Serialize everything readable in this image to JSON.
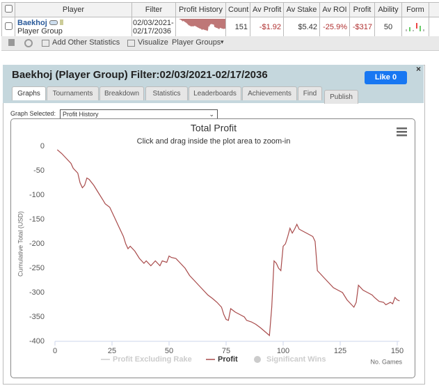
{
  "table": {
    "headers": [
      "Player",
      "Filter",
      "Profit History",
      "Count",
      "Av Profit",
      "Av Stake",
      "Av ROI",
      "Profit",
      "Ability",
      "Form"
    ],
    "row": {
      "player": "Baekhoj",
      "group": "Player Group",
      "filter": [
        "02/03/2021-",
        "02/17/2036"
      ],
      "count": 151,
      "av_profit": "-$1.92",
      "av_stake": "$5.42",
      "av_roi": "-25.9%",
      "profit": "-$317",
      "ability": 50
    }
  },
  "toolbar": [
    "Add Other Statistics",
    "Visualize",
    "Player Groups"
  ],
  "panel": {
    "title": "Baekhoj (Player Group) Filter:02/03/2021-02/17/2036",
    "like": "Like 0",
    "tabs": [
      "Graphs",
      "Tournaments",
      "Breakdown",
      "Statistics",
      "Leaderboards",
      "Achievements",
      "Find",
      "Publish"
    ],
    "graph_selected_label": "Graph Selected:",
    "graph_selected": "Profit History"
  },
  "chart_data": {
    "type": "line",
    "title": "Total Profit",
    "subtitle": "Click and drag inside the plot area to zoom-in",
    "y_label": "Cumulative Total (USD)",
    "x_label": "No. Games",
    "x": [
      1,
      3,
      5,
      7,
      8,
      10,
      11,
      12,
      13,
      14,
      15,
      17,
      19,
      21,
      22,
      24,
      26,
      28,
      30,
      31,
      32,
      33,
      35,
      37,
      39,
      40,
      42,
      44,
      46,
      47,
      49,
      50,
      51,
      53,
      55,
      57,
      59,
      61,
      63,
      65,
      67,
      69,
      71,
      73,
      74,
      75,
      76,
      77,
      79,
      81,
      83,
      84,
      86,
      88,
      90,
      92,
      94,
      95,
      96,
      97,
      98,
      99,
      100,
      101,
      102,
      103,
      104,
      105,
      106,
      107,
      109,
      111,
      113,
      114,
      115,
      116,
      118,
      120,
      122,
      124,
      126,
      128,
      130,
      131,
      132,
      133,
      135,
      137,
      139,
      140,
      142,
      144,
      145,
      147,
      148,
      149,
      150,
      151
    ],
    "series": [
      {
        "name": "Profit",
        "color": "#a84a4a",
        "values": [
          -7,
          -15,
          -25,
          -35,
          -45,
          -55,
          -75,
          -85,
          -80,
          -65,
          -68,
          -80,
          -95,
          -110,
          -118,
          -125,
          -145,
          -165,
          -185,
          -200,
          -210,
          -205,
          -215,
          -230,
          -240,
          -235,
          -245,
          -235,
          -245,
          -235,
          -238,
          -225,
          -228,
          -230,
          -240,
          -250,
          -265,
          -275,
          -285,
          -295,
          -305,
          -312,
          -320,
          -330,
          -345,
          -355,
          -357,
          -333,
          -340,
          -345,
          -350,
          -357,
          -360,
          -365,
          -372,
          -380,
          -388,
          -330,
          -235,
          -240,
          -250,
          -255,
          -205,
          -200,
          -185,
          -168,
          -178,
          -170,
          -160,
          -170,
          -175,
          -180,
          -185,
          -195,
          -255,
          -260,
          -270,
          -280,
          -290,
          -295,
          -300,
          -315,
          -325,
          -330,
          -320,
          -285,
          -295,
          -300,
          -305,
          -310,
          -318,
          -320,
          -325,
          -320,
          -323,
          -310,
          -315,
          -317
        ]
      }
    ],
    "legend": [
      {
        "name": "Profit Excluding Rake",
        "color": "#cccccc",
        "marker": "line"
      },
      {
        "name": "Profit",
        "color": "#a84a4a",
        "marker": "line"
      },
      {
        "name": "Significant Wins",
        "color": "#cccccc",
        "marker": "circle"
      }
    ],
    "xlim": [
      0,
      151
    ],
    "ylim": [
      -400,
      0
    ],
    "xticks": [
      0,
      25,
      50,
      75,
      100,
      125,
      150
    ],
    "yticks": [
      0,
      -50,
      -100,
      -150,
      -200,
      -250,
      -300,
      -350,
      -400
    ],
    "grid": false
  }
}
